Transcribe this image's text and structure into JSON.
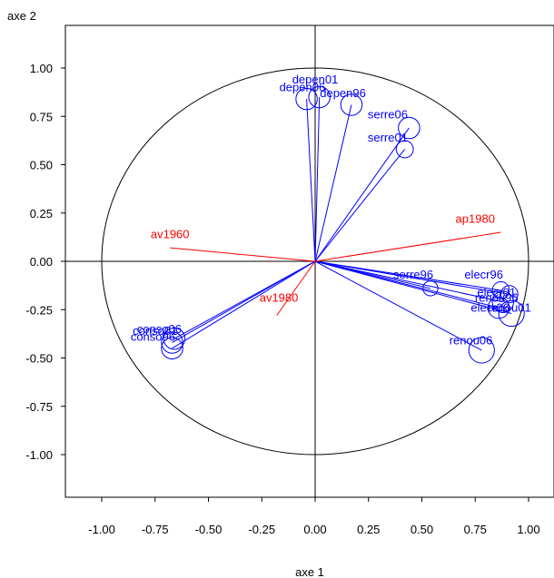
{
  "chart_data": {
    "type": "scatter",
    "title": "",
    "xlabel": "axe 1",
    "ylabel": "axe 2",
    "xlim": [
      -1.15,
      1.15
    ],
    "ylim": [
      -1.23,
      1.23
    ],
    "xticks": [
      "-1.00",
      "-0.75",
      "-0.50",
      "-0.25",
      "0.00",
      "0.25",
      "0.50",
      "0.75",
      "1.00"
    ],
    "yticks": [
      "1.00",
      "0.75",
      "0.50",
      "0.25",
      "0.00",
      "-0.25",
      "-0.50",
      "-0.75",
      "-1.00"
    ],
    "unit_circle": true,
    "colors": {
      "active": "#0000ff",
      "supplementary": "#ff0000",
      "axes": "#000000"
    },
    "active_variables": [
      {
        "label": "depen01",
        "x": 0.02,
        "y": 0.85,
        "r": 0.05
      },
      {
        "label": "depen06",
        "x": -0.04,
        "y": 0.84,
        "r": 0.05
      },
      {
        "label": "depen96",
        "x": 0.17,
        "y": 0.81,
        "r": 0.05
      },
      {
        "label": "serre06",
        "x": 0.44,
        "y": 0.69,
        "r": 0.05
      },
      {
        "label": "serre01",
        "x": 0.42,
        "y": 0.58,
        "r": 0.04
      },
      {
        "label": "serre96",
        "x": 0.54,
        "y": -0.14,
        "r": 0.035
      },
      {
        "label": "elecr96",
        "x": 0.87,
        "y": -0.15,
        "r": 0.04
      },
      {
        "label": "elecr01",
        "x": 0.91,
        "y": -0.17,
        "r": 0.04
      },
      {
        "label": "renou96",
        "x": 0.88,
        "y": -0.21,
        "r": 0.05
      },
      {
        "label": "elecr06",
        "x": 0.86,
        "y": -0.24,
        "r": 0.05
      },
      {
        "label": "renou01",
        "x": 0.92,
        "y": -0.27,
        "r": 0.06
      },
      {
        "label": "renou06",
        "x": 0.78,
        "y": -0.46,
        "r": 0.06
      },
      {
        "label": "conso06",
        "x": -0.66,
        "y": -0.4,
        "r": 0.05
      },
      {
        "label": "conso01",
        "x": -0.67,
        "y": -0.42,
        "r": 0.05
      },
      {
        "label": "conso96",
        "x": -0.67,
        "y": -0.45,
        "r": 0.05
      }
    ],
    "active_labels": [
      {
        "text": "depen01",
        "x": 0.0,
        "y": 0.92,
        "anchor": "middle"
      },
      {
        "text": "depen06",
        "x": -0.06,
        "y": 0.88,
        "anchor": "middle"
      },
      {
        "text": "depen96",
        "x": 0.13,
        "y": 0.85,
        "anchor": "middle"
      },
      {
        "text": "serre06",
        "x": 0.34,
        "y": 0.74,
        "anchor": "middle"
      },
      {
        "text": "serre01",
        "x": 0.34,
        "y": 0.62,
        "anchor": "middle"
      },
      {
        "text": "serre96",
        "x": 0.46,
        "y": -0.09,
        "anchor": "middle"
      },
      {
        "text": "elecr96",
        "x": 0.79,
        "y": -0.09,
        "anchor": "middle"
      },
      {
        "text": "elecr01",
        "x": 0.85,
        "y": -0.18,
        "anchor": "middle"
      },
      {
        "text": "renou96",
        "x": 0.85,
        "y": -0.21,
        "anchor": "middle"
      },
      {
        "text": "elecr06",
        "x": 0.82,
        "y": -0.26,
        "anchor": "middle"
      },
      {
        "text": "renou01",
        "x": 0.91,
        "y": -0.26,
        "anchor": "middle"
      },
      {
        "text": "renou06",
        "x": 0.73,
        "y": -0.43,
        "anchor": "middle"
      },
      {
        "text": "conso06",
        "x": -0.73,
        "y": -0.37,
        "anchor": "middle"
      },
      {
        "text": "conso01",
        "x": -0.75,
        "y": -0.38,
        "anchor": "middle"
      },
      {
        "text": "conso96",
        "x": -0.76,
        "y": -0.41,
        "anchor": "middle"
      }
    ],
    "supplementary_variables": [
      {
        "label": "ap1980",
        "x": 0.87,
        "y": 0.15
      },
      {
        "label": "av1960",
        "x": -0.68,
        "y": 0.07
      },
      {
        "label": "av1980",
        "x": -0.18,
        "y": -0.28
      }
    ],
    "supplementary_labels": [
      {
        "text": "ap1980",
        "x": 0.75,
        "y": 0.2,
        "anchor": "middle"
      },
      {
        "text": "av1960",
        "x": -0.68,
        "y": 0.12,
        "anchor": "middle"
      },
      {
        "text": "av1980",
        "x": -0.17,
        "y": -0.21,
        "anchor": "middle"
      }
    ]
  }
}
